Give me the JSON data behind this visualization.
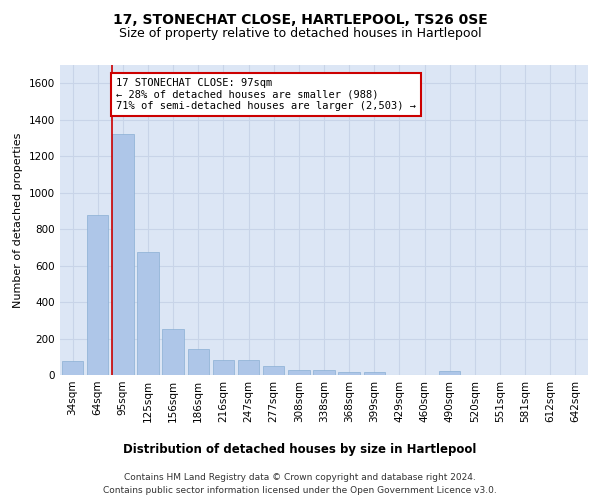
{
  "title": "17, STONECHAT CLOSE, HARTLEPOOL, TS26 0SE",
  "subtitle": "Size of property relative to detached houses in Hartlepool",
  "xlabel": "Distribution of detached houses by size in Hartlepool",
  "ylabel": "Number of detached properties",
  "categories": [
    "34sqm",
    "64sqm",
    "95sqm",
    "125sqm",
    "156sqm",
    "186sqm",
    "216sqm",
    "247sqm",
    "277sqm",
    "308sqm",
    "338sqm",
    "368sqm",
    "399sqm",
    "429sqm",
    "460sqm",
    "490sqm",
    "520sqm",
    "551sqm",
    "581sqm",
    "612sqm",
    "642sqm"
  ],
  "values": [
    75,
    880,
    1320,
    675,
    250,
    140,
    80,
    80,
    50,
    25,
    25,
    15,
    15,
    0,
    0,
    20,
    0,
    0,
    0,
    0,
    0
  ],
  "bar_color": "#aec6e8",
  "bar_edge_color": "#8aafd4",
  "property_line_index": 2,
  "annotation_text": "17 STONECHAT CLOSE: 97sqm\n← 28% of detached houses are smaller (988)\n71% of semi-detached houses are larger (2,503) →",
  "annotation_box_color": "#ffffff",
  "annotation_box_edge_color": "#cc0000",
  "line_color": "#cc0000",
  "ylim": [
    0,
    1700
  ],
  "yticks": [
    0,
    200,
    400,
    600,
    800,
    1000,
    1200,
    1400,
    1600
  ],
  "grid_color": "#c8d4e8",
  "bg_color": "#dce6f5",
  "footer_line1": "Contains HM Land Registry data © Crown copyright and database right 2024.",
  "footer_line2": "Contains public sector information licensed under the Open Government Licence v3.0.",
  "title_fontsize": 10,
  "subtitle_fontsize": 9,
  "xlabel_fontsize": 8.5,
  "ylabel_fontsize": 8,
  "tick_fontsize": 7.5,
  "footer_fontsize": 6.5,
  "annotation_fontsize": 7.5
}
